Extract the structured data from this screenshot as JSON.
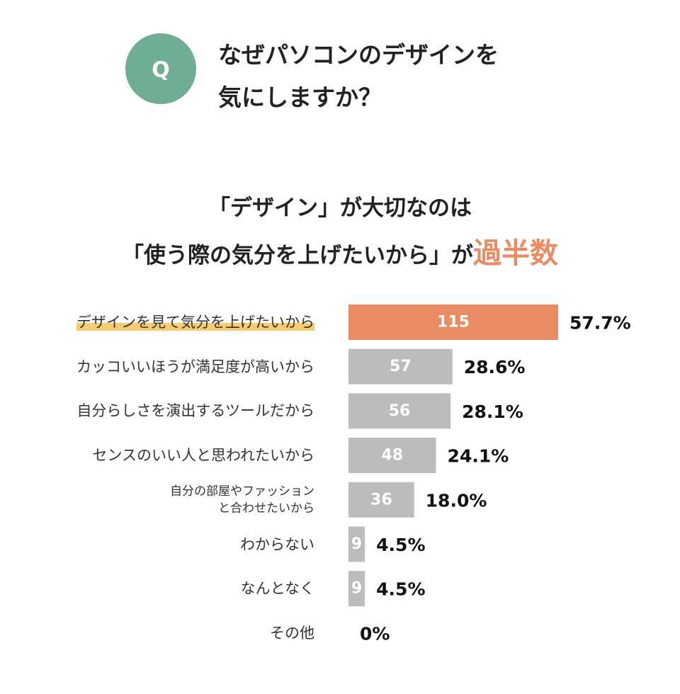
{
  "badge": "Q",
  "question": "なぜパソコンのデザインを\n気にしますか？",
  "headline": [
    "「デザイン」が大切なのは",
    "「使う際の気分を上げたいから」が"
  ],
  "headline_emphasis": "過半数",
  "chart_data": {
    "type": "bar",
    "orientation": "horizontal",
    "categories": [
      "デザインを見て気分を上げたいから",
      "カッコいいほうが満足度が高いから",
      "自分らしさを演出するツールだから",
      "センスのいい人と思われたいから",
      "自分の部屋やファッション\nと合わせたいから",
      "わからない",
      "なんとなく",
      "その他"
    ],
    "values": [
      115,
      57,
      56,
      48,
      36,
      9,
      9,
      0
    ],
    "percentages": [
      57.7,
      28.6,
      28.1,
      24.1,
      18.0,
      4.5,
      4.5,
      0
    ],
    "percentage_labels": [
      "57.7%",
      "28.6%",
      "28.1%",
      "24.1%",
      "18.0%",
      "4.5%",
      "4.5%",
      "0%"
    ],
    "highlight": 0,
    "highlight_color": "#e98c63",
    "color": "#bcbcbc"
  }
}
